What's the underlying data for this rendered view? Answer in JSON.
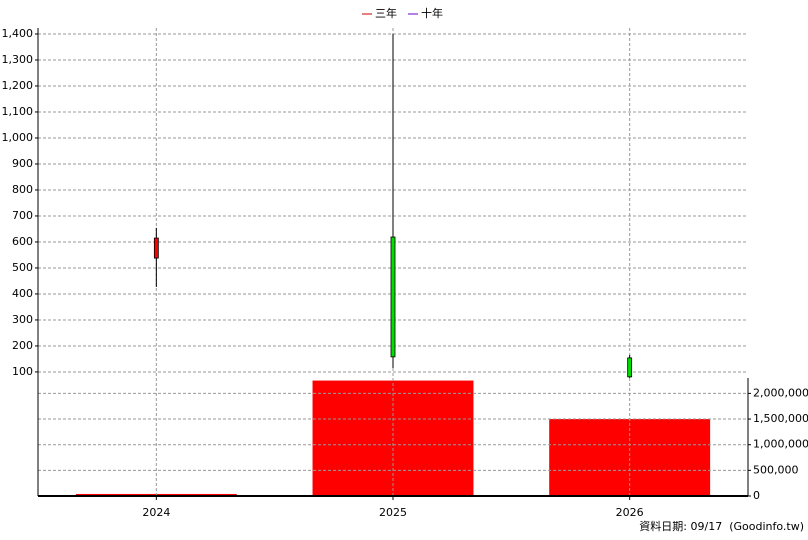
{
  "chart_data": {
    "type": "candlestick",
    "legend": [
      {
        "name": "三年",
        "color": "#cc0000"
      },
      {
        "name": "十年",
        "color": "#6600cc"
      }
    ],
    "categories": [
      "2024",
      "2025",
      "2026"
    ],
    "open": [
      538,
      619,
      154
    ],
    "high": [
      654,
      1400,
      165
    ],
    "low": [
      427,
      115,
      77
    ],
    "close": [
      615,
      158,
      81
    ],
    "up_color": "#ff0000",
    "down_color": "#00dd00",
    "ylim": [
      69,
      1423
    ],
    "yticks": [
      100,
      200,
      300,
      400,
      500,
      600,
      700,
      800,
      900,
      {
        "value": 1000,
        "label": "1,000"
      },
      {
        "value": 1100,
        "label": "1,100"
      },
      {
        "value": 1200,
        "label": "1,200"
      },
      {
        "value": 1300,
        "label": "1,300"
      },
      {
        "value": 1400,
        "label": "1,400"
      }
    ],
    "grid": true,
    "volume": {
      "values": [
        40000,
        2250000,
        1500000
      ],
      "color": "#ff0000",
      "ylim": [
        0,
        2300000
      ],
      "yticks": [
        0,
        {
          "value": 500000,
          "label": "500,000"
        },
        {
          "value": 1000000,
          "label": "1,000,000"
        },
        {
          "value": 1500000,
          "label": "1,500,000"
        },
        {
          "value": 2000000,
          "label": "2,000,000"
        }
      ]
    },
    "footer": "資料日期: 09/17  (Goodinfo.tw)"
  }
}
